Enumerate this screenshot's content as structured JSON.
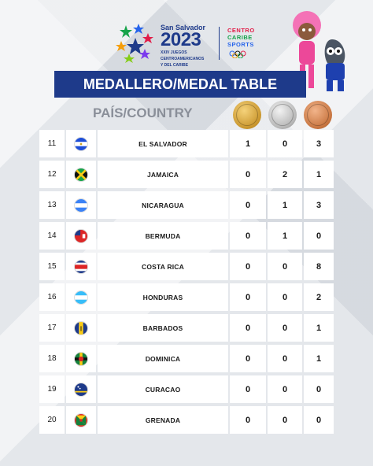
{
  "event": {
    "city": "San Salvador",
    "year": "2023",
    "subtitle_lines": [
      "XXIV JUEGOS",
      "CENTROAMERICANOS",
      "Y DEL CARIBE"
    ]
  },
  "centro_caribe": {
    "lines": [
      "CENTRO",
      "CARIBE",
      "SPORTS"
    ],
    "colors": [
      "#e11d48",
      "#16a34a",
      "#2563eb"
    ]
  },
  "title": "MEDALLERO/MEDAL TABLE",
  "country_header": "PAÍS/COUNTRY",
  "medals": [
    "gold-medal-icon",
    "silver-medal-icon",
    "bronze-medal-icon"
  ],
  "rows": [
    {
      "rank": "11",
      "country": "EL SALVADOR",
      "flag": "el-salvador-flag-icon",
      "gold": "1",
      "silver": "0",
      "bronze": "3"
    },
    {
      "rank": "12",
      "country": "JAMAICA",
      "flag": "jamaica-flag-icon",
      "gold": "0",
      "silver": "2",
      "bronze": "1"
    },
    {
      "rank": "13",
      "country": "NICARAGUA",
      "flag": "nicaragua-flag-icon",
      "gold": "0",
      "silver": "1",
      "bronze": "3"
    },
    {
      "rank": "14",
      "country": "BERMUDA",
      "flag": "bermuda-flag-icon",
      "gold": "0",
      "silver": "1",
      "bronze": "0"
    },
    {
      "rank": "15",
      "country": "COSTA RICA",
      "flag": "costa-rica-flag-icon",
      "gold": "0",
      "silver": "0",
      "bronze": "8"
    },
    {
      "rank": "16",
      "country": "HONDURAS",
      "flag": "honduras-flag-icon",
      "gold": "0",
      "silver": "0",
      "bronze": "2"
    },
    {
      "rank": "17",
      "country": "BARBADOS",
      "flag": "barbados-flag-icon",
      "gold": "0",
      "silver": "0",
      "bronze": "1"
    },
    {
      "rank": "18",
      "country": "DOMINICA",
      "flag": "dominica-flag-icon",
      "gold": "0",
      "silver": "0",
      "bronze": "1"
    },
    {
      "rank": "19",
      "country": "CURACAO",
      "flag": "curacao-flag-icon",
      "gold": "0",
      "silver": "0",
      "bronze": "0"
    },
    {
      "rank": "20",
      "country": "GRENADA",
      "flag": "grenada-flag-icon",
      "gold": "0",
      "silver": "0",
      "bronze": "0"
    }
  ],
  "brand_color": "#1e3a8a"
}
